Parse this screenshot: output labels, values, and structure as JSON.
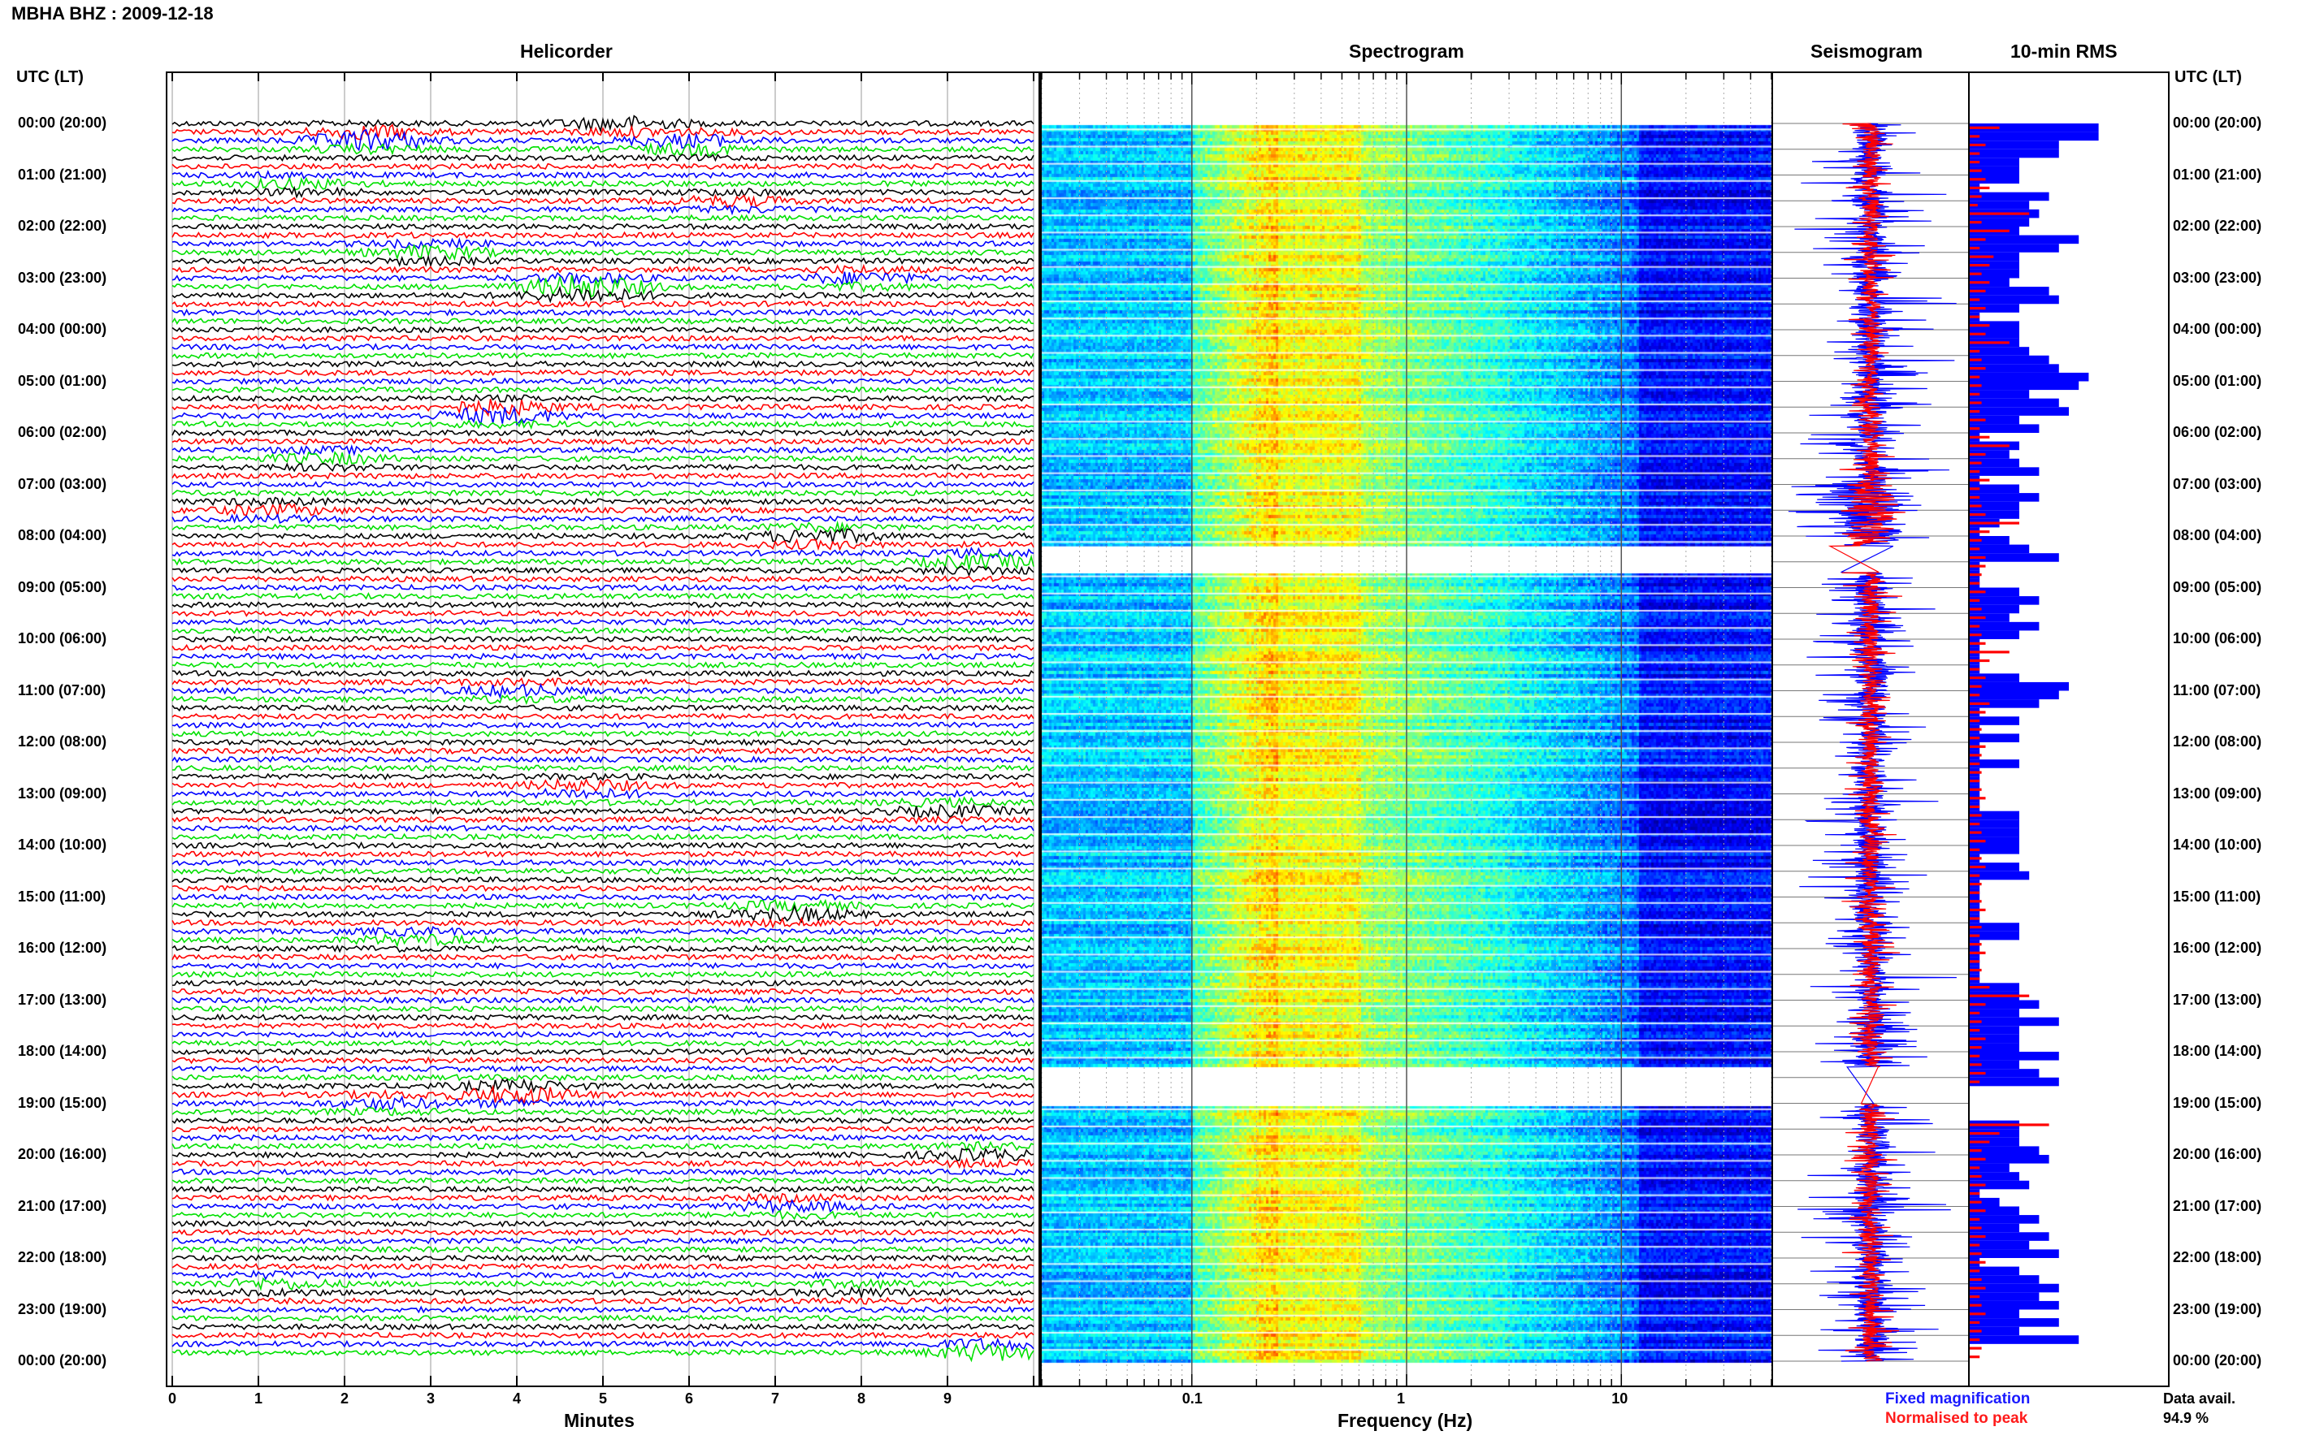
{
  "header": {
    "title": "MBHA BHZ : 2009-12-18"
  },
  "panels": {
    "helicorder": "Helicorder",
    "spectrogram": "Spectrogram",
    "seismogram": "Seismogram",
    "rms": "10-min RMS"
  },
  "axes": {
    "utc_label_left": "UTC (LT)",
    "utc_label_right": "UTC (LT)",
    "minutes_label": "Minutes",
    "frequency_label": "Frequency (Hz)"
  },
  "footer": {
    "fixed_magnification": "Fixed magnification",
    "normalised_to_peak": "Normalised to peak",
    "data_avail_label": "Data avail.",
    "data_avail_value": "94.9 %"
  },
  "colors": {
    "trace_black": "#000000",
    "trace_red": "#ff0000",
    "trace_blue": "#0000ff",
    "trace_green": "#00e000",
    "fixed_magnification": "#1a1aff",
    "normalised_to_peak": "#ff1a1a"
  },
  "chart_data": [
    {
      "type": "line",
      "name": "Helicorder",
      "x_axis": {
        "label": "Minutes",
        "ticks": [
          "0",
          "1",
          "2",
          "3",
          "4",
          "5",
          "6",
          "7",
          "8",
          "9"
        ],
        "range": [
          0,
          10
        ]
      },
      "time_labels": [
        "00:00 (20:00)",
        "01:00 (21:00)",
        "02:00 (22:00)",
        "03:00 (23:00)",
        "04:00 (00:00)",
        "05:00 (01:00)",
        "06:00 (02:00)",
        "07:00 (03:00)",
        "08:00 (04:00)",
        "09:00 (05:00)",
        "10:00 (06:00)",
        "11:00 (07:00)",
        "12:00 (08:00)",
        "13:00 (09:00)",
        "14:00 (10:00)",
        "15:00 (11:00)",
        "16:00 (12:00)",
        "17:00 (13:00)",
        "18:00 (14:00)",
        "19:00 (15:00)",
        "20:00 (16:00)",
        "21:00 (17:00)",
        "22:00 (18:00)",
        "23:00 (19:00)",
        "00:00 (20:00)"
      ],
      "trace_colors": [
        "black",
        "red",
        "blue",
        "green"
      ],
      "traces_per_hour": 6,
      "events": [
        {
          "hour": 0.0,
          "minute": 5.2,
          "amp": 2.2
        },
        {
          "hour": 0.3,
          "minute": 2.3,
          "amp": 3.5
        },
        {
          "hour": 0.4,
          "minute": 6.0,
          "amp": 2.2
        },
        {
          "hour": 1.2,
          "minute": 1.5,
          "amp": 1.5
        },
        {
          "hour": 1.5,
          "minute": 6.5,
          "amp": 1.4
        },
        {
          "hour": 2.5,
          "minute": 3.0,
          "amp": 2.0
        },
        {
          "hour": 3.2,
          "minute": 4.8,
          "amp": 4.0
        },
        {
          "hour": 3.0,
          "minute": 8.0,
          "amp": 1.8
        },
        {
          "hour": 5.6,
          "minute": 3.8,
          "amp": 3.0
        },
        {
          "hour": 6.5,
          "minute": 1.8,
          "amp": 1.6
        },
        {
          "hour": 7.5,
          "minute": 1.2,
          "amp": 1.5
        },
        {
          "hour": 8.0,
          "minute": 7.5,
          "amp": 2.2
        },
        {
          "hour": 8.5,
          "minute": 9.4,
          "amp": 2.2
        },
        {
          "hour": 11.0,
          "minute": 4.0,
          "amp": 1.6
        },
        {
          "hour": 12.9,
          "minute": 4.8,
          "amp": 1.8
        },
        {
          "hour": 13.3,
          "minute": 9.0,
          "amp": 1.6
        },
        {
          "hour": 15.3,
          "minute": 7.2,
          "amp": 2.2
        },
        {
          "hour": 15.8,
          "minute": 2.8,
          "amp": 1.4
        },
        {
          "hour": 18.8,
          "minute": 4.0,
          "amp": 2.8
        },
        {
          "hour": 19.0,
          "minute": 2.5,
          "amp": 1.5
        },
        {
          "hour": 20.0,
          "minute": 9.4,
          "amp": 1.6
        },
        {
          "hour": 21.0,
          "minute": 7.2,
          "amp": 1.5
        },
        {
          "hour": 22.5,
          "minute": 1.2,
          "amp": 1.5
        },
        {
          "hour": 22.6,
          "minute": 8.0,
          "amp": 1.2
        },
        {
          "hour": 23.8,
          "minute": 9.5,
          "amp": 2.6
        }
      ]
    },
    {
      "type": "heatmap",
      "name": "Spectrogram",
      "x_axis": {
        "label": "Frequency (Hz)",
        "scale": "log",
        "ticks": [
          "0.1",
          "1",
          "10"
        ],
        "range": [
          0.02,
          50
        ]
      },
      "y_axis": {
        "range": [
          0,
          24
        ]
      },
      "gaps_hours": [
        [
          8.2,
          8.7
        ],
        [
          18.3,
          19.0
        ]
      ]
    },
    {
      "type": "line",
      "name": "Seismogram",
      "gaps_hours": [
        [
          8.2,
          8.7
        ],
        [
          18.3,
          19.0
        ]
      ]
    },
    {
      "type": "bar",
      "name": "10-min RMS",
      "orientation": "horizontal",
      "blue_widths": [
        0.65,
        0.65,
        0.45,
        0.45,
        0.25,
        0.25,
        0.25,
        0.05,
        0.4,
        0.3,
        0.35,
        0.3,
        0.25,
        0.55,
        0.45,
        0.25,
        0.25,
        0.25,
        0.2,
        0.4,
        0.45,
        0.25,
        0.05,
        0.25,
        0.25,
        0.25,
        0.3,
        0.4,
        0.45,
        0.6,
        0.55,
        0.3,
        0.45,
        0.5,
        0.25,
        0.35,
        0.05,
        0.25,
        0.2,
        0.25,
        0.35,
        0.05,
        0.25,
        0.35,
        0.25,
        0.25,
        0.15,
        0.05,
        0.2,
        0.3,
        0.45,
        0.05,
        0.05,
        0.05,
        0.25,
        0.35,
        0.25,
        0.2,
        0.35,
        0.25,
        0.05,
        0.05,
        0.05,
        0.05,
        0.25,
        0.5,
        0.45,
        0.35,
        0.05,
        0.25,
        0.05,
        0.25,
        0.05,
        0.05,
        0.25,
        0.05,
        0.05,
        0.05,
        0.05,
        0.05,
        0.25,
        0.25,
        0.25,
        0.25,
        0.25,
        0.05,
        0.25,
        0.3,
        0.05,
        0.05,
        0.05,
        0.05,
        0.05,
        0.25,
        0.25,
        0.05,
        0.05,
        0.05,
        0.05,
        0.05,
        0.25,
        0.25,
        0.35,
        0.25,
        0.45,
        0.25,
        0.25,
        0.25,
        0.45,
        0.25,
        0.35,
        0.45,
        0.0,
        0.0,
        0.0,
        0.0,
        0.25,
        0.25,
        0.25,
        0.35,
        0.4,
        0.2,
        0.25,
        0.3,
        0.05,
        0.15,
        0.25,
        0.35,
        0.25,
        0.4,
        0.3,
        0.45,
        0.05,
        0.25,
        0.35,
        0.45,
        0.35,
        0.45,
        0.25,
        0.45,
        0.25,
        0.55
      ],
      "red_widths": [
        0.15,
        0.05,
        0.08,
        0.05,
        0.05,
        0.06,
        0.08,
        0.1,
        0.06,
        0.04,
        0.3,
        0.06,
        0.2,
        0.08,
        0.05,
        0.12,
        0.1,
        0.06,
        0.1,
        0.08,
        0.05,
        0.08,
        0.05,
        0.1,
        0.08,
        0.2,
        0.05,
        0.06,
        0.08,
        0.05,
        0.06,
        0.05,
        0.06,
        0.05,
        0.08,
        0.05,
        0.1,
        0.2,
        0.08,
        0.06,
        0.05,
        0.1,
        0.05,
        0.05,
        0.06,
        0.08,
        0.25,
        0.1,
        0.06,
        0.05,
        0.08,
        0.08,
        0.06,
        0.05,
        0.08,
        0.05,
        0.06,
        0.08,
        0.05,
        0.06,
        0.08,
        0.2,
        0.1,
        0.05,
        0.08,
        0.06,
        0.05,
        0.1,
        0.08,
        0.05,
        0.06,
        0.05,
        0.08,
        0.06,
        0.05,
        0.06,
        0.05,
        0.06,
        0.08,
        0.05,
        0.06,
        0.05,
        0.06,
        0.08,
        0.05,
        0.06,
        0.08,
        0.05,
        0.06,
        0.05,
        0.06,
        0.08,
        0.05,
        0.06,
        0.05,
        0.06,
        0.08,
        0.05,
        0.06,
        0.05,
        0.1,
        0.3,
        0.08,
        0.05,
        0.06,
        0.05,
        0.08,
        0.06,
        0.05,
        0.06,
        0.08,
        0.05,
        0.0,
        0.0,
        0.0,
        0.0,
        0.4,
        0.15,
        0.1,
        0.06,
        0.08,
        0.05,
        0.06,
        0.08,
        0.05,
        0.06,
        0.08,
        0.05,
        0.06,
        0.08,
        0.05,
        0.06,
        0.08,
        0.05,
        0.06,
        0.08,
        0.05,
        0.06,
        0.08,
        0.05,
        0.06,
        0.05,
        0.06,
        0.05
      ]
    }
  ]
}
